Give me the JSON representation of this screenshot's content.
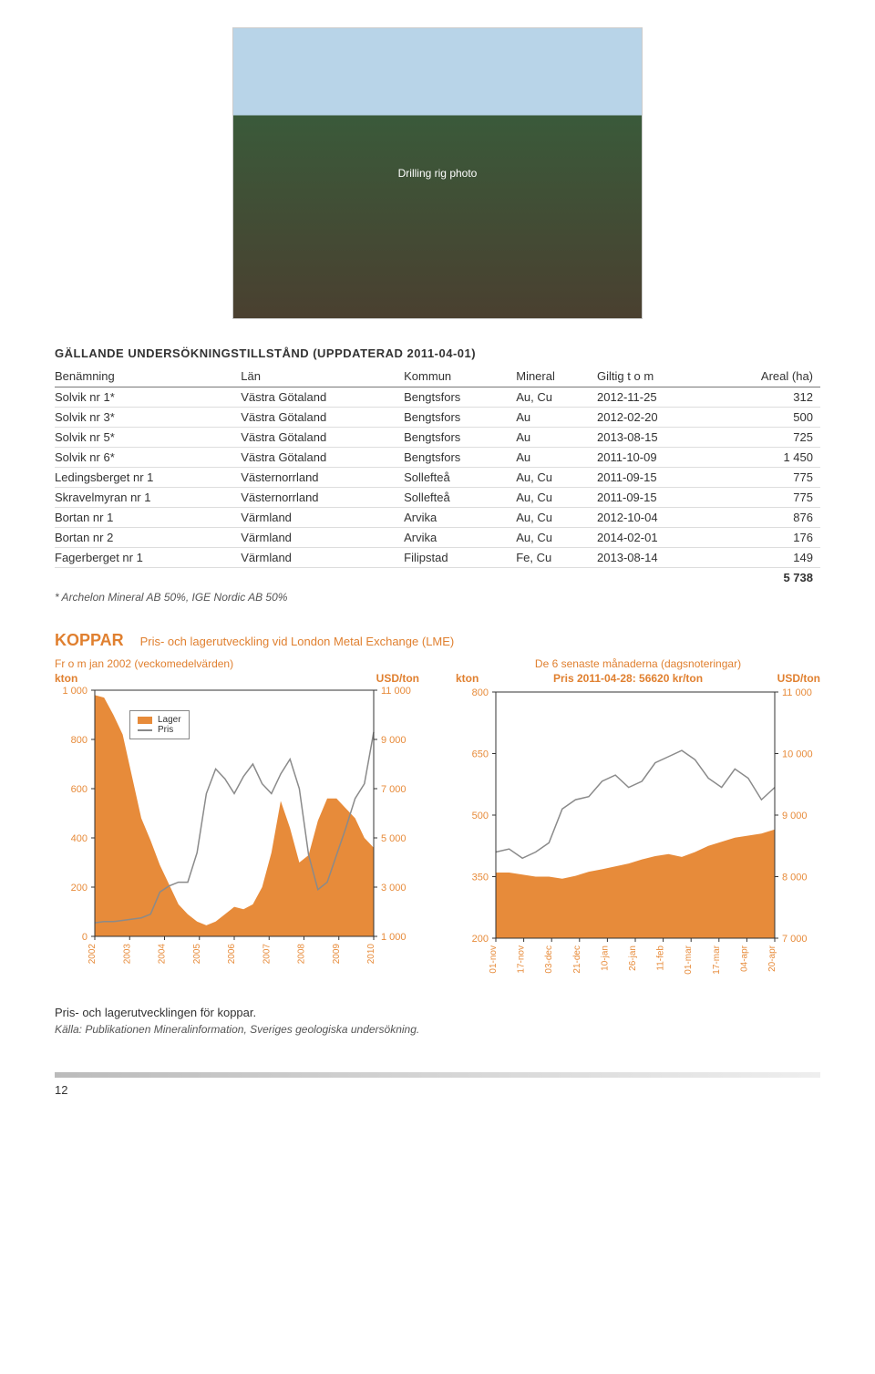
{
  "photo_alt": "Drilling rig photo",
  "table": {
    "title": "GÄLLANDE UNDERSÖKNINGSTILLSTÅND (UPPDATERAD 2011-04-01)",
    "columns": [
      "Benämning",
      "Län",
      "Kommun",
      "Mineral",
      "Giltig t o m",
      "Areal (ha)"
    ],
    "rows": [
      [
        "Solvik nr 1*",
        "Västra Götaland",
        "Bengtsfors",
        "Au, Cu",
        "2012-11-25",
        "312"
      ],
      [
        "Solvik nr 3*",
        "Västra Götaland",
        "Bengtsfors",
        "Au",
        "2012-02-20",
        "500"
      ],
      [
        "Solvik nr 5*",
        "Västra Götaland",
        "Bengtsfors",
        "Au",
        "2013-08-15",
        "725"
      ],
      [
        "Solvik nr 6*",
        "Västra Götaland",
        "Bengtsfors",
        "Au",
        "2011-10-09",
        "1 450"
      ],
      [
        "Ledingsberget nr 1",
        "Västernorrland",
        "Sollefteå",
        "Au, Cu",
        "2011-09-15",
        "775"
      ],
      [
        "Skravelmyran nr 1",
        "Västernorrland",
        "Sollefteå",
        "Au, Cu",
        "2011-09-15",
        "775"
      ],
      [
        "Bortan nr 1",
        "Värmland",
        "Arvika",
        "Au, Cu",
        "2012-10-04",
        "876"
      ],
      [
        "Bortan nr 2",
        "Värmland",
        "Arvika",
        "Au, Cu",
        "2014-02-01",
        "176"
      ],
      [
        "Fagerberget nr 1",
        "Värmland",
        "Filipstad",
        "Fe, Cu",
        "2013-08-14",
        "149"
      ]
    ],
    "total": "5 738",
    "footnote": "* Archelon Mineral AB 50%, IGE Nordic AB 50%"
  },
  "koppar_section": {
    "headline": "KOPPAR",
    "subtitle": "Pris- och lagerutveckling vid London Metal Exchange (LME)"
  },
  "chart_left": {
    "type": "dual-axis-area-line",
    "panel_title": "Fr o m jan  2002 (veckomedelvärden)",
    "y_left_label": "kton",
    "y_right_label": "USD/ton",
    "y_left_ticks": [
      1000,
      800,
      600,
      400,
      200,
      0
    ],
    "y_left_tick_labels": [
      "1 000",
      "800",
      "600",
      "400",
      "200",
      "0"
    ],
    "y_right_ticks": [
      11000,
      9000,
      7000,
      5000,
      3000,
      1000
    ],
    "y_right_tick_labels": [
      "11 000",
      "9 000",
      "7 000",
      "5 000",
      "3 000",
      "1 000"
    ],
    "x_tick_labels": [
      "2002",
      "2003",
      "2004",
      "2005",
      "2006",
      "2007",
      "2008",
      "2009",
      "2010"
    ],
    "lager_series": [
      980,
      970,
      900,
      820,
      650,
      480,
      390,
      290,
      210,
      130,
      90,
      60,
      45,
      60,
      90,
      120,
      110,
      130,
      200,
      340,
      550,
      440,
      300,
      330,
      470,
      560,
      560,
      520,
      480,
      400,
      360
    ],
    "pris_series": [
      1550,
      1600,
      1600,
      1650,
      1700,
      1750,
      1900,
      2800,
      3050,
      3200,
      3200,
      4400,
      6800,
      7800,
      7400,
      6800,
      7500,
      8000,
      7200,
      6800,
      7600,
      8200,
      7000,
      4300,
      2900,
      3200,
      4300,
      5400,
      6600,
      7200,
      9300
    ],
    "lager_ymax": 1000,
    "pris_ymin": 1000,
    "pris_ymax": 11000,
    "area_color": "#e78b3a",
    "line_color": "#8a8a8a",
    "tick_color": "#e78b3a",
    "legend": {
      "lager": "Lager",
      "pris": "Pris"
    }
  },
  "chart_right": {
    "type": "dual-axis-area-line",
    "panel_title": "De 6 senaste månaderna (dagsnoteringar)",
    "panel_sub": "Pris 2011-04-28: 56620 kr/ton",
    "y_left_label": "kton",
    "y_right_label": "USD/ton",
    "y_left_ticks": [
      800,
      650,
      500,
      350,
      200
    ],
    "y_left_tick_labels": [
      "800",
      "650",
      "500",
      "350",
      "200"
    ],
    "y_right_ticks": [
      11000,
      10000,
      9000,
      8000,
      7000
    ],
    "y_right_tick_labels": [
      "11 000",
      "10 000",
      "9 000",
      "8 000",
      "7 000"
    ],
    "x_tick_labels": [
      "01-nov",
      "17-nov",
      "03-dec",
      "21-dec",
      "10-jan",
      "26-jan",
      "11-feb",
      "01-mar",
      "17-mar",
      "04-apr",
      "20-apr"
    ],
    "lager_series": [
      360,
      360,
      355,
      350,
      350,
      345,
      352,
      362,
      368,
      375,
      382,
      392,
      400,
      405,
      398,
      410,
      425,
      435,
      445,
      450,
      455,
      465
    ],
    "pris_series": [
      8400,
      8450,
      8300,
      8400,
      8550,
      9100,
      9250,
      9300,
      9550,
      9650,
      9450,
      9550,
      9850,
      9950,
      10050,
      9900,
      9600,
      9450,
      9750,
      9600,
      9250,
      9450
    ],
    "lager_ymin": 200,
    "lager_ymax": 800,
    "pris_ymin": 7000,
    "pris_ymax": 11000,
    "area_color": "#e78b3a",
    "line_color": "#8a8a8a",
    "tick_color": "#e78b3a"
  },
  "caption": "Pris- och lagerutvecklingen för koppar.",
  "source": "Källa: Publikationen Mineralinformation, Sveriges geologiska undersökning.",
  "page_number": "12"
}
